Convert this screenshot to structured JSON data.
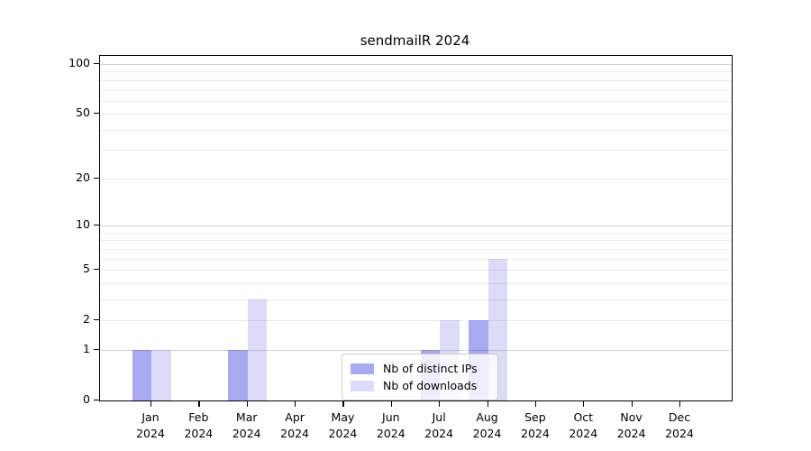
{
  "title": "sendmailR 2024",
  "colors": {
    "distinct_ips": "#a9a9f2",
    "downloads": "#dcdcf8",
    "axis": "#000000",
    "legend_border": "#cccccc"
  },
  "legend": {
    "items": [
      {
        "label": "Nb of distinct IPs",
        "color_key": "distinct_ips"
      },
      {
        "label": "Nb of downloads",
        "color_key": "downloads"
      }
    ]
  },
  "chart_data": {
    "type": "bar",
    "title": "sendmailR 2024",
    "categories": [
      "Jan 2024",
      "Feb 2024",
      "Mar 2024",
      "Apr 2024",
      "May 2024",
      "Jun 2024",
      "Jul 2024",
      "Aug 2024",
      "Sep 2024",
      "Oct 2024",
      "Nov 2024",
      "Dec 2024"
    ],
    "series": [
      {
        "name": "Nb of distinct IPs",
        "color_key": "distinct_ips",
        "values": [
          1,
          0,
          1,
          0,
          0,
          0,
          1,
          2,
          0,
          0,
          0,
          0
        ]
      },
      {
        "name": "Nb of downloads",
        "color_key": "downloads",
        "values": [
          1,
          0,
          3,
          0,
          0,
          0,
          2,
          6,
          0,
          0,
          0,
          0
        ]
      }
    ],
    "xlabel": "",
    "ylabel": "",
    "y_scale": "log10(value+1)",
    "y_ticks": [
      0,
      1,
      2,
      5,
      10,
      20,
      50,
      100
    ],
    "y_major_gridlines": [
      1,
      10,
      100
    ],
    "y_minor_gridlines": [
      2,
      3,
      4,
      5,
      6,
      7,
      8,
      9,
      20,
      30,
      40,
      50,
      60,
      70,
      80,
      90
    ],
    "ylim": [
      0,
      112
    ],
    "grid": true,
    "legend_position": "bottom-center"
  }
}
